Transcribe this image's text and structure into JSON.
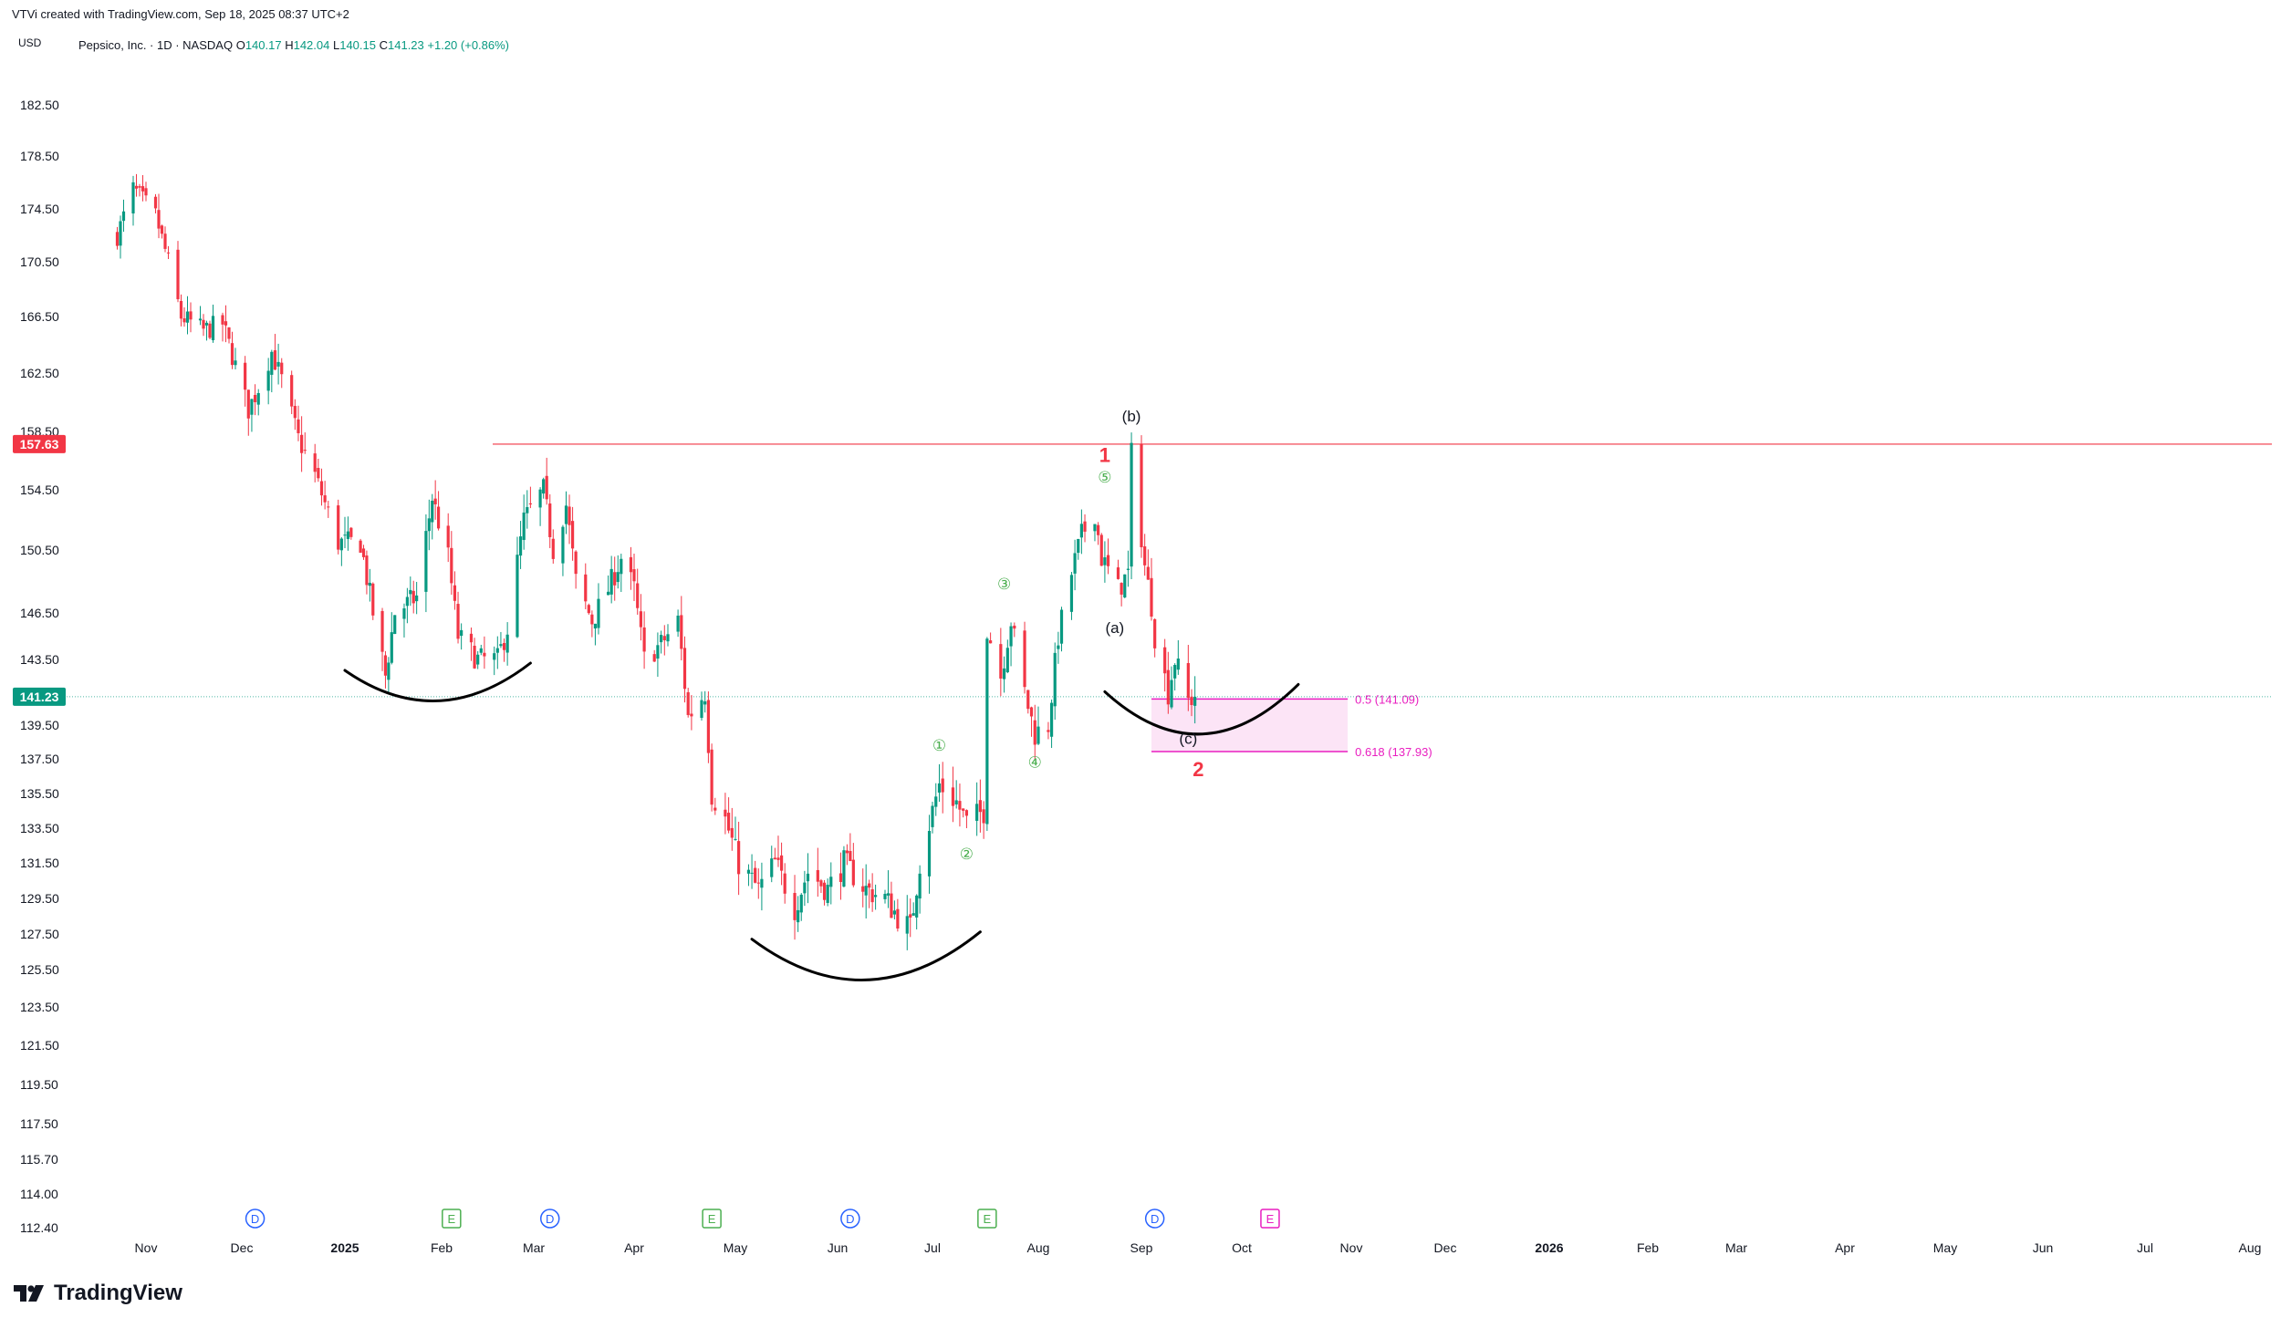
{
  "header": {
    "created_by": "VTVi created with TradingView.com, Sep 18, 2025 08:37 UTC+2",
    "currency": "USD",
    "symbol": "Pepsico, Inc. · 1D · NASDAQ",
    "open_label": "O",
    "open": "140.17",
    "high_label": "H",
    "high": "142.04",
    "low_label": "L",
    "low": "140.15",
    "close_label": "C",
    "close": "141.23",
    "change": "+1.20 (+0.86%)"
  },
  "brand": {
    "name": "TradingView"
  },
  "colors": {
    "up": "#089981",
    "down": "#f23645",
    "resistance": "#f23645",
    "current": "#089981",
    "fib": "#e91ec0",
    "fib_fill": "#fce4f6",
    "wave": "#4caf50",
    "event_d": "#2962ff",
    "event_e": "#4caf50",
    "event_e_future": "#e91ec0"
  },
  "chart_data": {
    "type": "candlestick",
    "ylim": [
      112.4,
      184
    ],
    "y_ticks": [
      "182.50",
      "178.50",
      "174.50",
      "170.50",
      "166.50",
      "162.50",
      "158.50",
      "154.50",
      "150.50",
      "146.50",
      "143.50",
      "139.50",
      "137.50",
      "135.50",
      "133.50",
      "131.50",
      "129.50",
      "127.50",
      "125.50",
      "123.50",
      "121.50",
      "119.50",
      "117.50",
      "115.70",
      "114.00",
      "112.40"
    ],
    "x_labels": [
      "Nov",
      "Dec",
      "2025",
      "Feb",
      "Mar",
      "Apr",
      "May",
      "Jun",
      "Jul",
      "Aug",
      "Sep",
      "Oct",
      "Nov",
      "Dec",
      "2026",
      "Feb",
      "Mar",
      "Apr",
      "May",
      "Jun",
      "Jul",
      "Aug"
    ],
    "price_path": [
      [
        "2024-10-23",
        172.5
      ],
      [
        "2024-10-28",
        176.0
      ],
      [
        "2024-11-04",
        174.0
      ],
      [
        "2024-11-08",
        170.5
      ],
      [
        "2024-11-12",
        166.5
      ],
      [
        "2024-11-19",
        165.5
      ],
      [
        "2024-11-25",
        166.0
      ],
      [
        "2024-12-03",
        160.0
      ],
      [
        "2024-12-06",
        161.5
      ],
      [
        "2024-12-10",
        164.0
      ],
      [
        "2024-12-13",
        162.0
      ],
      [
        "2024-12-18",
        158.0
      ],
      [
        "2024-12-23",
        155.5
      ],
      [
        "2024-12-30",
        151.0
      ],
      [
        "2025-01-06",
        151.0
      ],
      [
        "2025-01-10",
        146.5
      ],
      [
        "2025-01-14",
        142.5
      ],
      [
        "2025-01-17",
        146.5
      ],
      [
        "2025-01-24",
        147.5
      ],
      [
        "2025-01-29",
        154.0
      ],
      [
        "2025-02-03",
        150.0
      ],
      [
        "2025-02-06",
        145.0
      ],
      [
        "2025-02-12",
        143.5
      ],
      [
        "2025-02-18",
        143.5
      ],
      [
        "2025-02-21",
        145.5
      ],
      [
        "2025-02-26",
        152.5
      ],
      [
        "2025-03-04",
        154.5
      ],
      [
        "2025-03-07",
        150.5
      ],
      [
        "2025-03-11",
        153.5
      ],
      [
        "2025-03-14",
        148.5
      ],
      [
        "2025-03-19",
        146.0
      ],
      [
        "2025-03-24",
        148.0
      ],
      [
        "2025-03-28",
        150.0
      ],
      [
        "2025-04-01",
        148.0
      ],
      [
        "2025-04-04",
        143.5
      ],
      [
        "2025-04-09",
        144.5
      ],
      [
        "2025-04-14",
        146.0
      ],
      [
        "2025-04-17",
        140.0
      ],
      [
        "2025-04-22",
        141.5
      ],
      [
        "2025-04-24",
        135.5
      ],
      [
        "2025-04-28",
        134.0
      ],
      [
        "2025-05-02",
        131.5
      ],
      [
        "2025-05-08",
        130.0
      ],
      [
        "2025-05-13",
        131.5
      ],
      [
        "2025-05-19",
        129.0
      ],
      [
        "2025-05-23",
        131.0
      ],
      [
        "2025-05-29",
        130.0
      ],
      [
        "2025-06-03",
        131.5
      ],
      [
        "2025-06-10",
        130.0
      ],
      [
        "2025-06-16",
        129.5
      ],
      [
        "2025-06-20",
        128.5
      ],
      [
        "2025-06-24",
        127.8
      ],
      [
        "2025-06-27",
        131.5
      ],
      [
        "2025-07-01",
        134.5
      ],
      [
        "2025-07-03",
        136.0
      ],
      [
        "2025-07-08",
        135.0
      ],
      [
        "2025-07-11",
        133.8
      ],
      [
        "2025-07-16",
        134.5
      ],
      [
        "2025-07-17",
        145.5
      ],
      [
        "2025-07-21",
        142.5
      ],
      [
        "2025-07-24",
        146.0
      ],
      [
        "2025-07-28",
        141.5
      ],
      [
        "2025-07-31",
        139.0
      ],
      [
        "2025-08-04",
        139.5
      ],
      [
        "2025-08-07",
        145.0
      ],
      [
        "2025-08-11",
        149.0
      ],
      [
        "2025-08-14",
        151.5
      ],
      [
        "2025-08-18",
        153.0
      ],
      [
        "2025-08-20",
        150.0
      ],
      [
        "2025-08-25",
        148.0
      ],
      [
        "2025-08-28",
        149.0
      ],
      [
        "2025-08-29",
        157.0
      ],
      [
        "2025-09-02",
        149.5
      ],
      [
        "2025-09-04",
        147.0
      ],
      [
        "2025-09-05",
        145.0
      ],
      [
        "2025-09-09",
        141.5
      ],
      [
        "2025-09-11",
        143.5
      ],
      [
        "2025-09-15",
        141.0
      ],
      [
        "2025-09-17",
        141.23
      ]
    ],
    "resistance": {
      "price": 157.63,
      "label": "157.63"
    },
    "current_price": {
      "price": 141.23,
      "label": "141.23"
    },
    "fib_zone": {
      "from": "2025-09-04",
      "to": "2025-10-31",
      "level_1": {
        "price": 141.09,
        "label": "0.5 (141.09)"
      },
      "level_2": {
        "price": 137.93,
        "label": "0.618 (137.93)"
      }
    },
    "wave_labels": [
      {
        "text": "①",
        "date": "2025-07-03",
        "price": 138.0,
        "kind": "minor"
      },
      {
        "text": "②",
        "date": "2025-07-11",
        "price": 131.7,
        "kind": "minor"
      },
      {
        "text": "③",
        "date": "2025-07-22",
        "price": 148.0,
        "kind": "minor"
      },
      {
        "text": "④",
        "date": "2025-07-31",
        "price": 137.0,
        "kind": "minor"
      },
      {
        "text": "⑤",
        "date": "2025-08-21",
        "price": 155.0,
        "kind": "minor"
      },
      {
        "text": "1",
        "date": "2025-08-21",
        "price": 156.4,
        "kind": "major"
      },
      {
        "text": "(b)",
        "date": "2025-08-29",
        "price": 159.2,
        "kind": "corrective"
      },
      {
        "text": "(a)",
        "date": "2025-08-24",
        "price": 145.2,
        "kind": "corrective"
      },
      {
        "text": "(c)",
        "date": "2025-09-15",
        "price": 138.4,
        "kind": "corrective"
      },
      {
        "text": "2",
        "date": "2025-09-18",
        "price": 136.5,
        "kind": "major"
      }
    ],
    "events": [
      {
        "letter": "D",
        "date": "2024-12-05",
        "kind": "dividend"
      },
      {
        "letter": "E",
        "date": "2025-02-04",
        "kind": "earnings"
      },
      {
        "letter": "D",
        "date": "2025-03-06",
        "kind": "dividend"
      },
      {
        "letter": "E",
        "date": "2025-04-24",
        "kind": "earnings"
      },
      {
        "letter": "D",
        "date": "2025-06-05",
        "kind": "dividend"
      },
      {
        "letter": "E",
        "date": "2025-07-17",
        "kind": "earnings"
      },
      {
        "letter": "D",
        "date": "2025-09-05",
        "kind": "dividend"
      },
      {
        "letter": "E",
        "date": "2025-10-09",
        "kind": "earnings-future"
      }
    ],
    "drawn_arcs": [
      {
        "from": "2025-01-01",
        "to": "2025-02-28",
        "price": 142.5,
        "depth": 1.8
      },
      {
        "from": "2025-05-06",
        "to": "2025-07-15",
        "price": 126.9,
        "depth": 2.2
      },
      {
        "from": "2025-08-21",
        "to": "2025-10-17",
        "price": 141.2,
        "depth": 2.5
      }
    ]
  }
}
